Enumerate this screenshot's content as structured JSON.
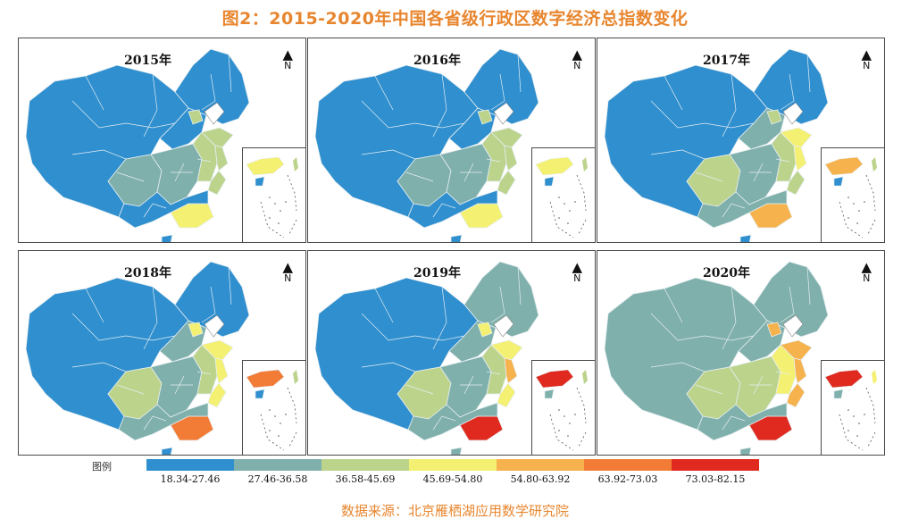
{
  "title": "图2：2015-2020年中国各省级行政区数字经济总指数变化",
  "source": "数据来源：北京雁栖湖应用数学研究院",
  "north_symbol": "N",
  "legend": {
    "title": "图例",
    "items": [
      {
        "label": "18.34-27.46",
        "color": "#2f8fcf"
      },
      {
        "label": "27.46-36.58",
        "color": "#7fb0ab"
      },
      {
        "label": "36.58-45.69",
        "color": "#bcd38c"
      },
      {
        "label": "45.69-54.80",
        "color": "#f4f071"
      },
      {
        "label": "54.80-63.92",
        "color": "#f6b24c"
      },
      {
        "label": "63.92-73.03",
        "color": "#f27b35"
      },
      {
        "label": "73.03-82.15",
        "color": "#e02a1f"
      }
    ]
  },
  "panels": [
    {
      "year": "2015年",
      "levels": {
        "west": 0,
        "northeast": 0,
        "north_mid": 0,
        "beijing": 2,
        "sichuan": 1,
        "central": 1,
        "east": 2,
        "shandong": 2,
        "jiangsu": 2,
        "zhejiang": 2,
        "guangdong": 3,
        "south": 0,
        "hainan": 0
      }
    },
    {
      "year": "2016年",
      "levels": {
        "west": 0,
        "northeast": 0,
        "north_mid": 0,
        "beijing": 2,
        "sichuan": 1,
        "central": 1,
        "east": 2,
        "shandong": 2,
        "jiangsu": 2,
        "zhejiang": 2,
        "guangdong": 3,
        "south": 0,
        "hainan": 0
      }
    },
    {
      "year": "2017年",
      "levels": {
        "west": 0,
        "northeast": 0,
        "north_mid": 1,
        "beijing": 2,
        "sichuan": 2,
        "central": 1,
        "east": 2,
        "shandong": 3,
        "jiangsu": 3,
        "zhejiang": 2,
        "guangdong": 4,
        "south": 1,
        "hainan": 0
      }
    },
    {
      "year": "2018年",
      "levels": {
        "west": 0,
        "northeast": 0,
        "north_mid": 1,
        "beijing": 3,
        "sichuan": 2,
        "central": 1,
        "east": 2,
        "shandong": 3,
        "jiangsu": 3,
        "zhejiang": 3,
        "guangdong": 5,
        "south": 1,
        "hainan": 0
      }
    },
    {
      "year": "2019年",
      "levels": {
        "west": 0,
        "northeast": 1,
        "north_mid": 1,
        "beijing": 3,
        "sichuan": 2,
        "central": 1,
        "east": 2,
        "shandong": 3,
        "jiangsu": 4,
        "zhejiang": 3,
        "guangdong": 6,
        "south": 1,
        "hainan": 1
      }
    },
    {
      "year": "2020年",
      "levels": {
        "west": 1,
        "northeast": 1,
        "north_mid": 1,
        "beijing": 4,
        "sichuan": 2,
        "central": 2,
        "east": 3,
        "shandong": 4,
        "jiangsu": 4,
        "zhejiang": 4,
        "guangdong": 6,
        "south": 1,
        "hainan": 1
      }
    }
  ]
}
